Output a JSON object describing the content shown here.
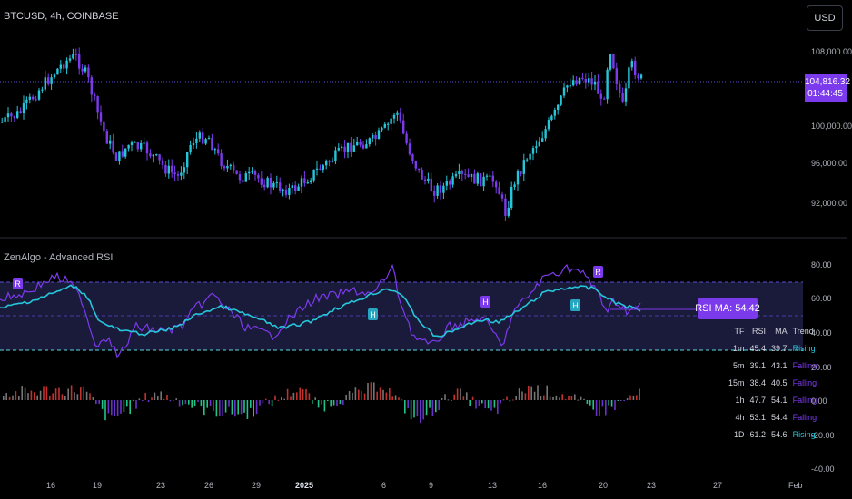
{
  "header": {
    "symbol_title": "BTCUSD, 4h, COINBASE",
    "currency_button": "USD"
  },
  "price_pane": {
    "last_price": "104,816.32",
    "countdown": "01:44:45",
    "y_axis_labels": [
      "108,000.00",
      "100,000.00",
      "96,000.00",
      "92,000.00"
    ],
    "up_color": "#26c6da",
    "down_color": "#7c3aed"
  },
  "indicator": {
    "title": "ZenAlgo - Advanced RSI",
    "y_axis_labels": [
      "80.00",
      "60.00",
      "40.00",
      "20.00",
      "0.00",
      "-20.00",
      "-40.00"
    ],
    "rsi_ma_label": "RSI MA: 54.42",
    "rsi_color": "#7c3aed",
    "ma_color": "#26c6da",
    "band_color": "#1a1a3a",
    "markers": [
      {
        "text": "R",
        "color": "#7c3aed"
      },
      {
        "text": "H",
        "color": "#7c3aed"
      },
      {
        "text": "H",
        "color": "#26a6c0"
      },
      {
        "text": "H",
        "color": "#26a6c0"
      },
      {
        "text": "R",
        "color": "#7c3aed"
      }
    ],
    "mtf_table": {
      "headers": [
        "TF",
        "RSI",
        "MA",
        "Trend"
      ],
      "rows": [
        {
          "tf": "1m",
          "rsi": "45.4",
          "ma": "39.7",
          "trend": "Rising",
          "trend_color": "#26c6da"
        },
        {
          "tf": "5m",
          "rsi": "39.1",
          "ma": "43.1",
          "trend": "Falling",
          "trend_color": "#7c3aed"
        },
        {
          "tf": "15m",
          "rsi": "38.4",
          "ma": "40.5",
          "trend": "Falling",
          "trend_color": "#7c3aed"
        },
        {
          "tf": "1h",
          "rsi": "47.7",
          "ma": "54.1",
          "trend": "Falling",
          "trend_color": "#7c3aed"
        },
        {
          "tf": "4h",
          "rsi": "53.1",
          "ma": "54.4",
          "trend": "Falling",
          "trend_color": "#7c3aed"
        },
        {
          "tf": "1D",
          "rsi": "61.2",
          "ma": "54.6",
          "trend": "Rising",
          "trend_color": "#26c6da"
        }
      ]
    }
  },
  "x_axis_labels": [
    "16",
    "19",
    "23",
    "26",
    "29",
    "2025",
    "6",
    "9",
    "13",
    "16",
    "20",
    "23",
    "27",
    "Feb"
  ]
}
